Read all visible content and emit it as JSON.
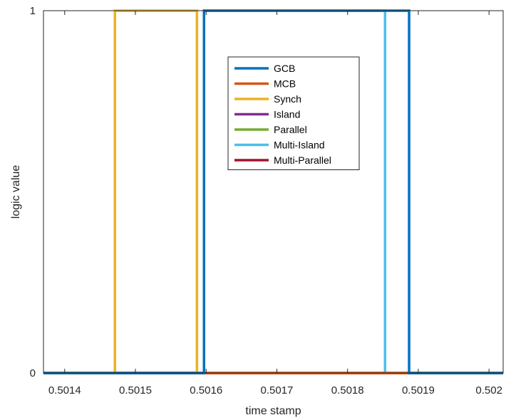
{
  "chart_data": {
    "type": "line",
    "title": "",
    "xlabel": "time stamp",
    "ylabel": "logic value",
    "xlim": [
      0.50137,
      0.50202
    ],
    "ylim": [
      0,
      1
    ],
    "xticks": [
      0.5014,
      0.5015,
      0.5016,
      0.5017,
      0.5018,
      0.5019,
      0.502
    ],
    "xtick_labels": [
      "0.5014",
      "0.5015",
      "0.5016",
      "0.5017",
      "0.5018",
      "0.5019",
      "0.502"
    ],
    "yticks": [
      0,
      1
    ],
    "ytick_labels": [
      "0",
      "1"
    ],
    "grid": false,
    "legend_position": "inside-upper-center",
    "series": [
      {
        "name": "GCB",
        "color": "#0072BD",
        "x": [
          0.50137,
          0.501597,
          0.501597,
          0.501887,
          0.501887,
          0.50202
        ],
        "y": [
          0,
          0,
          1,
          1,
          0,
          0
        ]
      },
      {
        "name": "MCB",
        "color": "#D95319",
        "x": [
          0.50137,
          0.50202
        ],
        "y": [
          0,
          0
        ]
      },
      {
        "name": "Synch",
        "color": "#EDB120",
        "x": [
          0.50137,
          0.501471,
          0.501471,
          0.501587,
          0.501587,
          0.50202
        ],
        "y": [
          0,
          0,
          1,
          1,
          0,
          0
        ]
      },
      {
        "name": "Island",
        "color": "#7E2F8E",
        "x": [
          0.50137,
          0.50202
        ],
        "y": [
          0,
          0
        ]
      },
      {
        "name": "Parallel",
        "color": "#77AC30",
        "x": [
          0.50137,
          0.50202
        ],
        "y": [
          0,
          0
        ]
      },
      {
        "name": "Multi-Island",
        "color": "#4DBEEE",
        "x": [
          0.50137,
          0.501597,
          0.501597,
          0.501853,
          0.501853,
          0.50202
        ],
        "y": [
          0,
          0,
          1,
          1,
          0,
          0
        ]
      },
      {
        "name": "Multi-Parallel",
        "color": "#A2142F",
        "x": [
          0.50137,
          0.50202
        ],
        "y": [
          0,
          0
        ]
      }
    ]
  }
}
